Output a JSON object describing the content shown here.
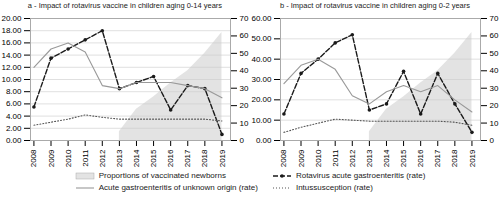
{
  "chart_data": [
    {
      "type": "line",
      "title": "a - Impact of rotavirus vaccine in children aging 0-14 years",
      "x": [
        2008,
        2009,
        2010,
        2011,
        2012,
        2013,
        2014,
        2015,
        2016,
        2017,
        2018,
        2019
      ],
      "series": [
        {
          "name": "Proportions of vaccinated newborns",
          "type": "area",
          "axis": "y2",
          "color": "#d0d0d0",
          "values": [
            null,
            null,
            null,
            null,
            null,
            5,
            18,
            25,
            33,
            40,
            50,
            62
          ]
        },
        {
          "name": "Rotavirus acute gastroenteritis (rate)",
          "type": "line",
          "color": "#1a1a1a",
          "line_style": "dashed",
          "marker": "circle",
          "values": [
            5.5,
            13.5,
            15.0,
            16.5,
            18.0,
            8.5,
            9.5,
            10.5,
            5.0,
            9.0,
            8.5,
            1.0
          ]
        },
        {
          "name": "Acute gastroenteritis of unknown origin (rate)",
          "type": "line",
          "color": "#999999",
          "line_style": "solid",
          "values": [
            12.0,
            15.0,
            16.0,
            14.5,
            9.0,
            8.5,
            9.5,
            9.5,
            9.5,
            9.0,
            8.5,
            7.0
          ]
        },
        {
          "name": "Intussusception (rate)",
          "type": "line",
          "color": "#555555",
          "line_style": "dotted",
          "values": [
            2.5,
            3.0,
            3.5,
            4.2,
            3.8,
            3.5,
            3.5,
            3.5,
            3.5,
            3.5,
            3.5,
            3.2
          ]
        }
      ],
      "xlim": [
        2007.8,
        2019.5
      ],
      "xticks": [
        2008,
        2009,
        2010,
        2011,
        2012,
        2013,
        2014,
        2015,
        2016,
        2017,
        2018,
        2019
      ],
      "ylim": [
        0,
        20.0
      ],
      "yticks": [
        {
          "value": 0,
          "label": "0.00"
        },
        {
          "value": 2.0,
          "label": "2.00"
        },
        {
          "value": 4.0,
          "label": "4.00"
        },
        {
          "value": 6.0,
          "label": "6.00"
        },
        {
          "value": 8.0,
          "label": "8.00"
        },
        {
          "value": 10.0,
          "label": "10.00"
        },
        {
          "value": 12.0,
          "label": "12.00"
        },
        {
          "value": 14.0,
          "label": "14.00"
        },
        {
          "value": 16.0,
          "label": "16.00"
        },
        {
          "value": 18.0,
          "label": "18.00"
        },
        {
          "value": 20.0,
          "label": "20.00"
        }
      ],
      "y2lim": [
        0,
        70
      ],
      "y2ticks": [
        0,
        10,
        20,
        30,
        40,
        50,
        60,
        70
      ],
      "grid": true,
      "legend": "bottom"
    },
    {
      "type": "line",
      "title": "b - Impact of rotavirus vaccine in children aging 0-2 years",
      "x": [
        2008,
        2009,
        2010,
        2011,
        2012,
        2013,
        2014,
        2015,
        2016,
        2017,
        2018,
        2019
      ],
      "series": [
        {
          "name": "Proportions of vaccinated newborns",
          "type": "area",
          "axis": "y2",
          "color": "#d0d0d0",
          "values": [
            null,
            null,
            null,
            null,
            null,
            5,
            18,
            25,
            33,
            40,
            50,
            62
          ]
        },
        {
          "name": "Rotavirus acute gastroenteritis (rate)",
          "type": "line",
          "color": "#1a1a1a",
          "line_style": "dashed",
          "marker": "circle",
          "values": [
            13.0,
            33.0,
            40.0,
            48.0,
            52.0,
            15.0,
            18.0,
            34.0,
            13.0,
            33.0,
            18.0,
            4.0
          ]
        },
        {
          "name": "Acute gastroenteritis of unknown origin (rate)",
          "type": "line",
          "color": "#999999",
          "line_style": "solid",
          "values": [
            28.0,
            37.0,
            40.0,
            35.0,
            22.0,
            18.0,
            24.0,
            27.0,
            24.0,
            27.0,
            20.0,
            14.0
          ]
        },
        {
          "name": "Intussusception (rate)",
          "type": "line",
          "color": "#555555",
          "line_style": "dotted",
          "values": [
            4.0,
            6.5,
            8.5,
            10.5,
            10.0,
            9.5,
            9.5,
            9.5,
            9.5,
            9.5,
            9.0,
            7.5
          ]
        }
      ],
      "xlim": [
        2007.8,
        2019.5
      ],
      "xticks": [
        2008,
        2009,
        2010,
        2011,
        2012,
        2013,
        2014,
        2015,
        2016,
        2017,
        2018,
        2019
      ],
      "ylim": [
        0,
        60.0
      ],
      "yticks": [
        {
          "value": 0,
          "label": "0.00"
        },
        {
          "value": 10.0,
          "label": "10.00"
        },
        {
          "value": 20.0,
          "label": "20.00"
        },
        {
          "value": 30.0,
          "label": "30.00"
        },
        {
          "value": 40.0,
          "label": "40.00"
        },
        {
          "value": 50.0,
          "label": "50.00"
        },
        {
          "value": 60.0,
          "label": "60.00"
        }
      ],
      "y2lim": [
        0,
        70
      ],
      "y2ticks": [
        0,
        10,
        20,
        30,
        40,
        50,
        60,
        70
      ],
      "grid": true,
      "legend": "bottom"
    }
  ]
}
